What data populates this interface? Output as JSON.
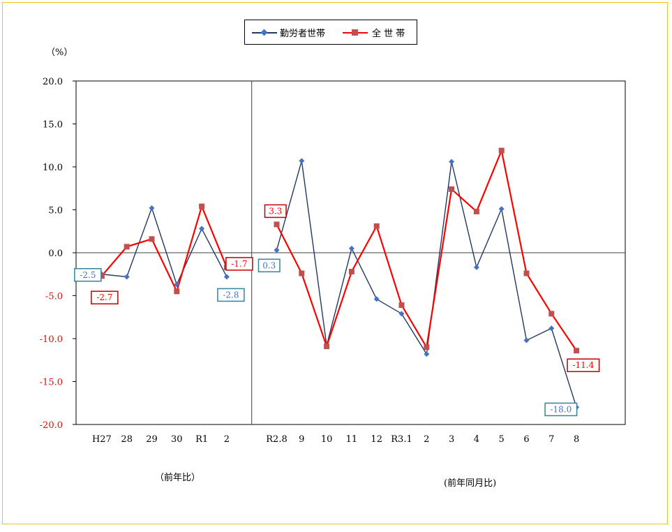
{
  "legend": {
    "series1": "勤労者世帯",
    "series2": "全 世 帯"
  },
  "unit_label": "（%）",
  "section_labels": {
    "annual": "（前年比）",
    "monthly": "(前年同月比)"
  },
  "colors": {
    "series1": "#203864",
    "series1_marker": "#4472c4",
    "series2": "#ff0000",
    "series2_marker": "#c0504d",
    "positive_tick": "#000000",
    "negative_tick": "#ff0000",
    "box1_border": "#31849b",
    "box2_border": "#c00000",
    "frame": "#f2c316"
  },
  "chart_data": {
    "type": "line",
    "categories": [
      "H27",
      "28",
      "29",
      "30",
      "R1",
      "2",
      "",
      "R2.8",
      "9",
      "10",
      "11",
      "12",
      "R3.1",
      "2",
      "3",
      "4",
      "5",
      "6",
      "7",
      "8"
    ],
    "ylim": [
      -20,
      20
    ],
    "yticks": [
      "20.0",
      "15.0",
      "10.0",
      "5.0",
      "0.0",
      "-5.0",
      "-10.0",
      "-15.0",
      "-20.0"
    ],
    "series": [
      {
        "name": "勤労者世帯",
        "values": [
          -2.5,
          -2.8,
          5.2,
          -3.7,
          2.8,
          -2.8,
          null,
          0.3,
          10.7,
          -10.8,
          0.5,
          -5.4,
          -7.1,
          -11.8,
          10.6,
          -1.7,
          5.1,
          -10.2,
          -8.8,
          -18.0
        ]
      },
      {
        "name": "全 世 帯",
        "values": [
          -2.7,
          0.7,
          1.6,
          -4.5,
          5.4,
          -1.7,
          null,
          3.3,
          -2.4,
          -10.9,
          -2.2,
          3.1,
          -6.1,
          -11.0,
          7.4,
          4.8,
          11.9,
          -2.4,
          -7.1,
          -11.4
        ]
      }
    ],
    "annotations": [
      {
        "text": "-2.5",
        "series": 0,
        "index": 0
      },
      {
        "text": "-2.7",
        "series": 1,
        "index": 0
      },
      {
        "text": "-1.7",
        "series": 1,
        "index": 5
      },
      {
        "text": "-2.8",
        "series": 0,
        "index": 5
      },
      {
        "text": "3.3",
        "series": 1,
        "index": 7
      },
      {
        "text": "0.3",
        "series": 0,
        "index": 7
      },
      {
        "text": "-11.4",
        "series": 1,
        "index": 19
      },
      {
        "text": "-18.0",
        "series": 0,
        "index": 19
      }
    ],
    "grid": false,
    "legend_position": "top-center"
  }
}
